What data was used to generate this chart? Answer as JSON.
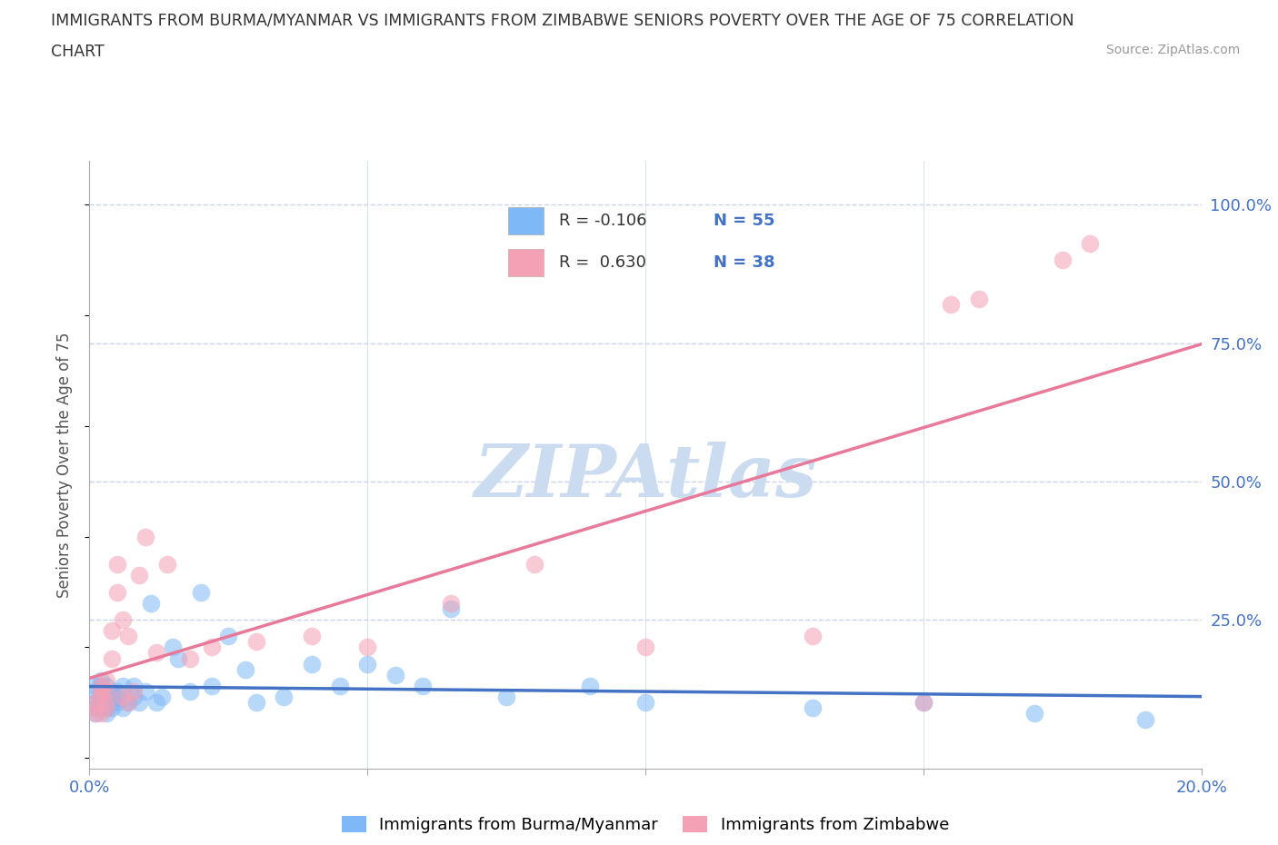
{
  "title_line1": "IMMIGRANTS FROM BURMA/MYANMAR VS IMMIGRANTS FROM ZIMBABWE SENIORS POVERTY OVER THE AGE OF 75 CORRELATION",
  "title_line2": "CHART",
  "source": "Source: ZipAtlas.com",
  "ylabel": "Seniors Poverty Over the Age of 75",
  "xlim": [
    0.0,
    0.2
  ],
  "ylim": [
    -0.02,
    1.08
  ],
  "color_burma": "#7eb8f7",
  "color_zimbabwe": "#f4a0b5",
  "color_burma_line": "#4472c4",
  "color_zimbabwe_line": "#e8799a",
  "legend_R_burma": "R = -0.106",
  "legend_N_burma": "N = 55",
  "legend_R_zimbabwe": "R =  0.630",
  "legend_N_zimbabwe": "N = 38",
  "watermark": "ZIPAtlas",
  "watermark_color": "#ccdcf0",
  "grid_color": "#c8d4e8",
  "burma_x": [
    0.001,
    0.001,
    0.001,
    0.001,
    0.001,
    0.002,
    0.002,
    0.002,
    0.002,
    0.002,
    0.002,
    0.003,
    0.003,
    0.003,
    0.003,
    0.003,
    0.004,
    0.004,
    0.004,
    0.004,
    0.005,
    0.005,
    0.005,
    0.006,
    0.006,
    0.007,
    0.008,
    0.008,
    0.009,
    0.01,
    0.011,
    0.012,
    0.013,
    0.015,
    0.016,
    0.018,
    0.02,
    0.022,
    0.025,
    0.028,
    0.03,
    0.035,
    0.04,
    0.045,
    0.05,
    0.055,
    0.06,
    0.065,
    0.075,
    0.09,
    0.1,
    0.13,
    0.15,
    0.17,
    0.19
  ],
  "burma_y": [
    0.1,
    0.12,
    0.13,
    0.08,
    0.09,
    0.11,
    0.1,
    0.09,
    0.12,
    0.13,
    0.14,
    0.1,
    0.11,
    0.13,
    0.09,
    0.08,
    0.11,
    0.12,
    0.1,
    0.09,
    0.1,
    0.11,
    0.12,
    0.09,
    0.13,
    0.1,
    0.11,
    0.13,
    0.1,
    0.12,
    0.28,
    0.1,
    0.11,
    0.2,
    0.18,
    0.12,
    0.3,
    0.13,
    0.22,
    0.16,
    0.1,
    0.11,
    0.17,
    0.13,
    0.17,
    0.15,
    0.13,
    0.27,
    0.11,
    0.13,
    0.1,
    0.09,
    0.1,
    0.08,
    0.07
  ],
  "zimbabwe_x": [
    0.001,
    0.001,
    0.001,
    0.002,
    0.002,
    0.002,
    0.002,
    0.003,
    0.003,
    0.003,
    0.003,
    0.004,
    0.004,
    0.005,
    0.005,
    0.006,
    0.006,
    0.007,
    0.007,
    0.008,
    0.009,
    0.01,
    0.012,
    0.014,
    0.018,
    0.022,
    0.03,
    0.04,
    0.05,
    0.065,
    0.08,
    0.1,
    0.13,
    0.15,
    0.155,
    0.16,
    0.175,
    0.18
  ],
  "zimbabwe_y": [
    0.1,
    0.09,
    0.08,
    0.12,
    0.11,
    0.13,
    0.08,
    0.1,
    0.12,
    0.14,
    0.09,
    0.23,
    0.18,
    0.35,
    0.3,
    0.11,
    0.25,
    0.1,
    0.22,
    0.12,
    0.33,
    0.4,
    0.19,
    0.35,
    0.18,
    0.2,
    0.21,
    0.22,
    0.2,
    0.28,
    0.35,
    0.2,
    0.22,
    0.1,
    0.82,
    0.83,
    0.9,
    0.93
  ]
}
